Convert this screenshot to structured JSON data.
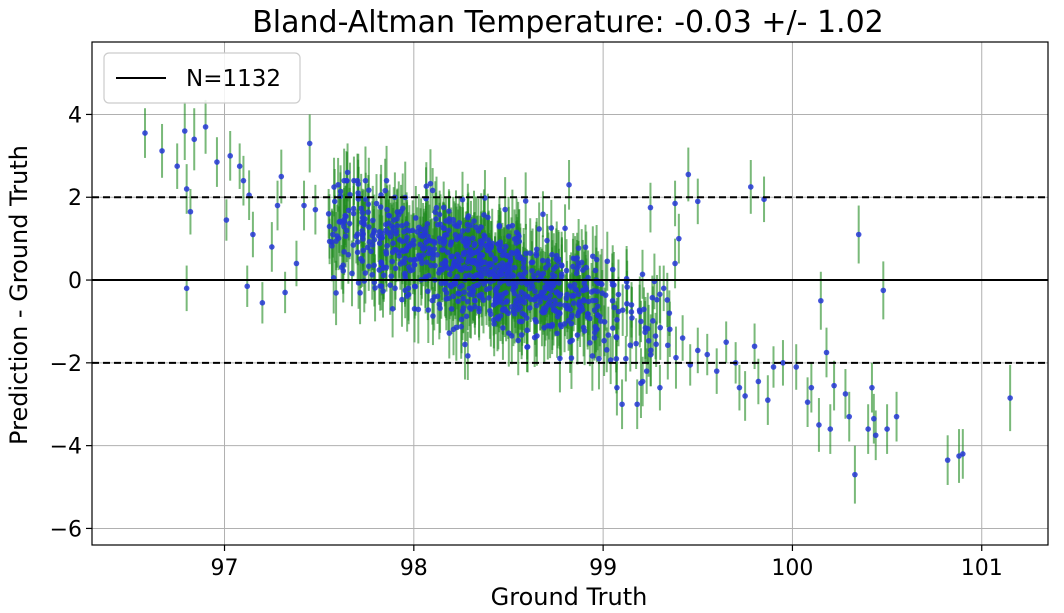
{
  "chart_data": {
    "type": "scatter",
    "title": "Bland-Altman Temperature: -0.03 +/- 1.02",
    "xlabel": "Ground Truth",
    "ylabel": "Prediction - Ground Truth",
    "xlim": [
      96.3,
      101.35
    ],
    "ylim": [
      -6.4,
      5.75
    ],
    "xticks": [
      97,
      98,
      99,
      100,
      101
    ],
    "yticks": [
      4,
      2,
      0,
      -2,
      -4,
      -6
    ],
    "xtick_labels": [
      "97",
      "98",
      "99",
      "100",
      "101"
    ],
    "ytick_labels": [
      "4",
      "2",
      "0",
      "−2",
      "−4",
      "−6"
    ],
    "grid": true,
    "legend": {
      "label": "N=1132",
      "placement": "top-left"
    },
    "mean_line": 0,
    "limits_of_agreement": [
      2,
      -2
    ],
    "colors": {
      "points": "#2437d6",
      "error_bars": "#1f8a1f",
      "lines": "#000000",
      "grid": "#b0b0b0"
    },
    "points": [
      {
        "x": 96.58,
        "y": 3.55,
        "e": 0.6
      },
      {
        "x": 96.67,
        "y": 3.12,
        "e": 0.65
      },
      {
        "x": 96.75,
        "y": 2.75,
        "e": 0.55
      },
      {
        "x": 96.79,
        "y": 3.6,
        "e": 0.7
      },
      {
        "x": 96.8,
        "y": 2.2,
        "e": 0.6
      },
      {
        "x": 96.82,
        "y": 1.65,
        "e": 0.55
      },
      {
        "x": 96.84,
        "y": 3.4,
        "e": 0.75
      },
      {
        "x": 96.9,
        "y": 3.7,
        "e": 0.65
      },
      {
        "x": 96.8,
        "y": -0.2,
        "e": 0.55
      },
      {
        "x": 96.96,
        "y": 2.85,
        "e": 0.6
      },
      {
        "x": 97.01,
        "y": 1.45,
        "e": 0.5
      },
      {
        "x": 97.03,
        "y": 3.0,
        "e": 0.6
      },
      {
        "x": 97.08,
        "y": 2.75,
        "e": 0.55
      },
      {
        "x": 97.1,
        "y": 2.4,
        "e": 0.6
      },
      {
        "x": 97.13,
        "y": 2.05,
        "e": 0.6
      },
      {
        "x": 97.15,
        "y": 1.1,
        "e": 0.55
      },
      {
        "x": 97.12,
        "y": -0.15,
        "e": 0.5
      },
      {
        "x": 97.2,
        "y": -0.55,
        "e": 0.5
      },
      {
        "x": 97.25,
        "y": 0.8,
        "e": 0.6
      },
      {
        "x": 97.28,
        "y": 1.8,
        "e": 0.6
      },
      {
        "x": 97.3,
        "y": 2.5,
        "e": 0.65
      },
      {
        "x": 97.32,
        "y": -0.3,
        "e": 0.5
      },
      {
        "x": 97.38,
        "y": 0.4,
        "e": 0.55
      },
      {
        "x": 97.42,
        "y": 1.8,
        "e": 0.6
      },
      {
        "x": 97.45,
        "y": 3.3,
        "e": 0.7
      },
      {
        "x": 97.48,
        "y": 1.7,
        "e": 0.6
      },
      {
        "x": 97.55,
        "y": 1.6,
        "e": 0.6
      },
      {
        "x": 97.6,
        "y": 2.3,
        "e": 0.65
      },
      {
        "x": 97.65,
        "y": 2.6,
        "e": 0.7
      },
      {
        "x": 97.9,
        "y": 2.0,
        "e": 0.6
      },
      {
        "x": 98.82,
        "y": 2.3,
        "e": 0.6
      },
      {
        "x": 99.25,
        "y": 1.75,
        "e": 0.6
      },
      {
        "x": 99.38,
        "y": 1.85,
        "e": 0.55
      },
      {
        "x": 99.45,
        "y": 2.55,
        "e": 0.65
      },
      {
        "x": 99.5,
        "y": 1.9,
        "e": 0.55
      },
      {
        "x": 99.78,
        "y": 2.25,
        "e": 0.65
      },
      {
        "x": 99.85,
        "y": 1.95,
        "e": 0.55
      },
      {
        "x": 99.38,
        "y": 0.4,
        "e": 0.6
      },
      {
        "x": 99.4,
        "y": 1.0,
        "e": 0.6
      },
      {
        "x": 99.35,
        "y": -0.8,
        "e": 0.55
      },
      {
        "x": 99.42,
        "y": -1.4,
        "e": 0.55
      },
      {
        "x": 99.46,
        "y": -2.05,
        "e": 0.5
      },
      {
        "x": 99.5,
        "y": -1.7,
        "e": 0.55
      },
      {
        "x": 99.55,
        "y": -1.8,
        "e": 0.5
      },
      {
        "x": 99.6,
        "y": -2.2,
        "e": 0.55
      },
      {
        "x": 99.65,
        "y": -1.5,
        "e": 0.5
      },
      {
        "x": 99.7,
        "y": -2.0,
        "e": 0.5
      },
      {
        "x": 99.72,
        "y": -2.6,
        "e": 0.55
      },
      {
        "x": 99.75,
        "y": -2.8,
        "e": 0.6
      },
      {
        "x": 99.8,
        "y": -1.6,
        "e": 0.55
      },
      {
        "x": 99.82,
        "y": -2.45,
        "e": 0.55
      },
      {
        "x": 99.87,
        "y": -2.9,
        "e": 0.6
      },
      {
        "x": 99.9,
        "y": -2.1,
        "e": 0.5
      },
      {
        "x": 99.95,
        "y": -2.0,
        "e": 0.55
      },
      {
        "x": 100.02,
        "y": -2.1,
        "e": 0.55
      },
      {
        "x": 100.08,
        "y": -2.95,
        "e": 0.6
      },
      {
        "x": 100.1,
        "y": -2.6,
        "e": 0.6
      },
      {
        "x": 100.14,
        "y": -3.5,
        "e": 0.65
      },
      {
        "x": 100.15,
        "y": -0.5,
        "e": 0.7
      },
      {
        "x": 100.18,
        "y": -1.75,
        "e": 0.6
      },
      {
        "x": 100.2,
        "y": -3.6,
        "e": 0.6
      },
      {
        "x": 100.22,
        "y": -2.55,
        "e": 0.6
      },
      {
        "x": 100.28,
        "y": -2.75,
        "e": 0.6
      },
      {
        "x": 100.3,
        "y": -3.3,
        "e": 0.6
      },
      {
        "x": 100.35,
        "y": 1.1,
        "e": 0.7
      },
      {
        "x": 100.33,
        "y": -4.7,
        "e": 0.7
      },
      {
        "x": 100.4,
        "y": -3.6,
        "e": 0.6
      },
      {
        "x": 100.42,
        "y": -2.6,
        "e": 0.6
      },
      {
        "x": 100.43,
        "y": -3.35,
        "e": 0.6
      },
      {
        "x": 100.44,
        "y": -3.75,
        "e": 0.6
      },
      {
        "x": 100.48,
        "y": -0.25,
        "e": 0.7
      },
      {
        "x": 100.5,
        "y": -3.6,
        "e": 0.6
      },
      {
        "x": 100.55,
        "y": -3.3,
        "e": 0.6
      },
      {
        "x": 100.82,
        "y": -4.35,
        "e": 0.6
      },
      {
        "x": 100.88,
        "y": -4.25,
        "e": 0.65
      },
      {
        "x": 100.9,
        "y": -4.2,
        "e": 0.6
      },
      {
        "x": 101.15,
        "y": -2.85,
        "e": 0.8
      },
      {
        "x": 99.1,
        "y": -3.0,
        "e": 0.6
      },
      {
        "x": 99.18,
        "y": -3.0,
        "e": 0.6
      },
      {
        "x": 99.23,
        "y": -2.2,
        "e": 0.55
      },
      {
        "x": 99.3,
        "y": -2.6,
        "e": 0.55
      },
      {
        "x": 99.28,
        "y": -1.55,
        "e": 0.55
      },
      {
        "x": 99.12,
        "y": -1.9,
        "e": 0.55
      },
      {
        "x": 99.2,
        "y": -1.0,
        "e": 0.5
      },
      {
        "x": 99.15,
        "y": -0.6,
        "e": 0.55
      },
      {
        "x": 99.32,
        "y": -0.2,
        "e": 0.55
      }
    ],
    "cluster": {
      "n": 900,
      "center_x": 98.35,
      "spread_x": 0.42,
      "center_y": 0.25,
      "spread_y": 0.9,
      "slope": -1.5,
      "e": 0.7
    }
  }
}
